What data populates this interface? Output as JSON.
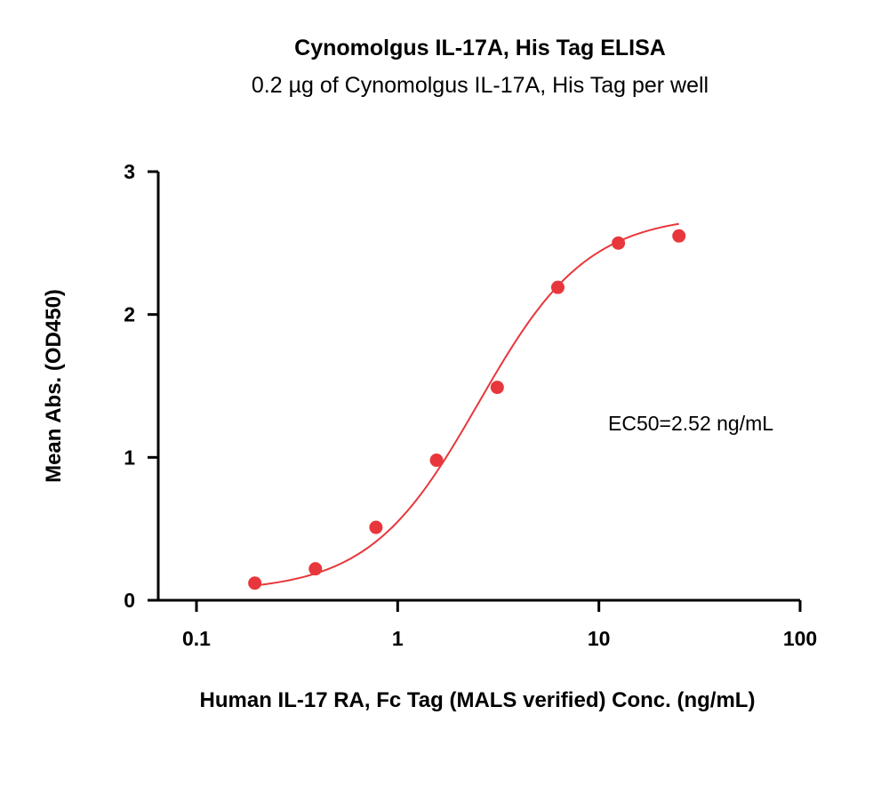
{
  "chart_data": {
    "type": "scatter",
    "title": "Cynomolgus IL-17A, His Tag ELISA",
    "subtitle": "0.2 µg of Cynomolgus IL-17A, His Tag per well",
    "xlabel": "Human IL-17 RA, Fc Tag (MALS verified) Conc. (ng/mL)",
    "ylabel": "Mean Abs. (OD450)",
    "x_scale": "log",
    "xlim": [
      0.05,
      100
    ],
    "ylim": [
      0,
      3
    ],
    "x_ticks": [
      {
        "value": 0.1,
        "label": "0.1"
      },
      {
        "value": 1,
        "label": "1"
      },
      {
        "value": 10,
        "label": "10"
      },
      {
        "value": 100,
        "label": "100"
      }
    ],
    "y_ticks": [
      {
        "value": 0,
        "label": "0"
      },
      {
        "value": 1,
        "label": "1"
      },
      {
        "value": 2,
        "label": "2"
      },
      {
        "value": 3,
        "label": "3"
      }
    ],
    "grid": false,
    "color": "#e8373c",
    "x": [
      0.195,
      0.39,
      0.78,
      1.56,
      3.125,
      6.25,
      12.5,
      25
    ],
    "y": [
      0.12,
      0.22,
      0.51,
      0.98,
      1.49,
      2.19,
      2.5,
      2.55
    ],
    "fit": {
      "model": "4PL",
      "bottom": 0.06,
      "top": 2.7,
      "ec50": 2.52,
      "hill": 1.6
    },
    "annotation": "EC50=2.52 ng/mL"
  }
}
